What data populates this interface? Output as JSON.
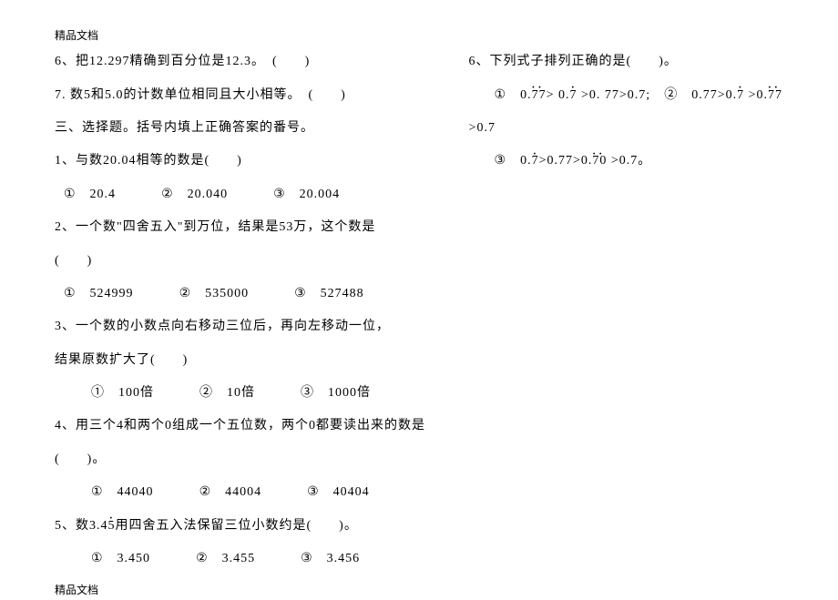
{
  "header_note": "精品文档",
  "footer_note": "精品文档",
  "left": {
    "l1": "6、把12.297精确到百分位是12.3。　(　　)",
    "l2": "7. 数5和5.0的计数单位相同且大小相等。　(　　)",
    "l3": "三、选择题。括号内填上正确答案的番号。",
    "q1": "1、与数20.04相等的数是(　　)",
    "q1a": "①　20.4",
    "q1b": "②　20.040",
    "q1c": "③　20.004",
    "q2a": "2、一个数\"四舍五入\"到万位，结果是53万，这个数是",
    "q2b": "(　　)",
    "q2oa": "①　524999",
    "q2ob": "②　535000",
    "q2oc": "③　527488",
    "q3a": "3、一个数的小数点向右移动三位后，再向左移动一位，",
    "q3b": "结果原数扩大了(　　)",
    "q3oa": "①　100倍",
    "q3ob": "②　10倍",
    "q3oc": "③　1000倍",
    "q4a": "4、用三个4和两个0组成一个五位数，两个0都要读出来的数是",
    "q4b": "(　　)。",
    "q4oa": "①　44040",
    "q4ob": "②　44004",
    "q4oc": "③　40404",
    "q5": "5、数3.4__DOT45__用四舍五入法保留三位小数约是(　　)。",
    "q5oa": "①　3.450",
    "q5ob": "②　3.455",
    "q5oc": "③　3.456"
  },
  "right": {
    "q6": "6、下列式子排列正确的是(　　)。",
    "q6l1_a": "①　0.",
    "q6l1_b": "> 0.",
    "q6l1_c": " >0. 77>0.7;",
    "q6l1_d": "②　0.77>0.",
    "q6l1_e": " >0.",
    "q6l2": ">0.7",
    "q6l3_a": "③　0.",
    "q6l3_b": ">0.77>0.",
    "q6l3_c": " >0.7。",
    "d77": "77",
    "d7": "7",
    "d70": "70"
  }
}
